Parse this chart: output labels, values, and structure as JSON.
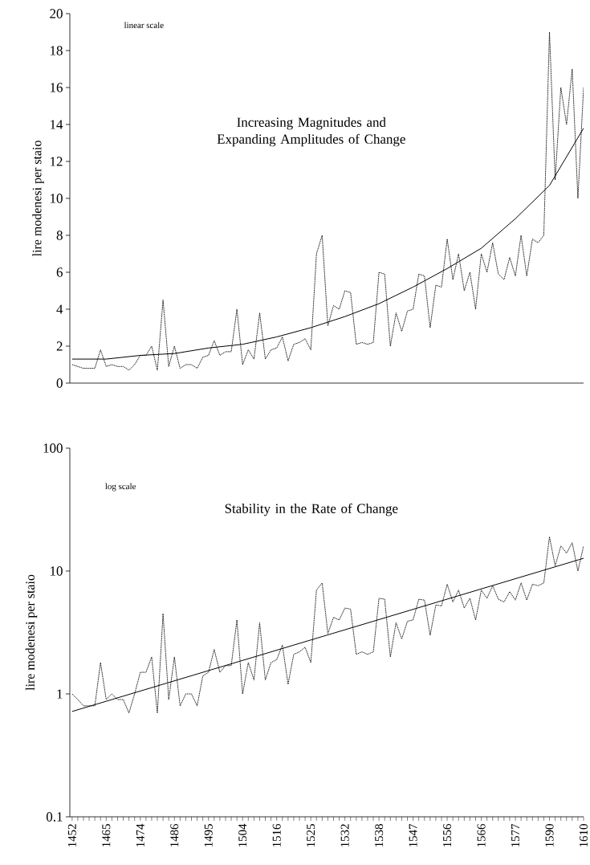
{
  "chart_data": [
    {
      "type": "line",
      "title": "Increasing Magnitudes and Expanding Amplitudes of Change",
      "ylabel": "lire modenesi per staio",
      "annotations": [
        "linear scale"
      ],
      "categories": [
        "1452",
        null,
        null,
        null,
        null,
        null,
        "1465",
        null,
        null,
        null,
        null,
        null,
        "1474",
        null,
        null,
        null,
        null,
        null,
        "1486",
        null,
        null,
        null,
        null,
        null,
        "1495",
        null,
        null,
        null,
        null,
        null,
        "1504",
        null,
        null,
        null,
        null,
        null,
        "1516",
        null,
        null,
        null,
        null,
        null,
        "1525",
        null,
        null,
        null,
        null,
        null,
        "1532",
        null,
        null,
        null,
        null,
        null,
        "1538",
        null,
        null,
        null,
        null,
        null,
        "1547",
        null,
        null,
        null,
        null,
        null,
        "1556",
        null,
        null,
        null,
        null,
        null,
        "1566",
        null,
        null,
        null,
        null,
        null,
        "1577",
        null,
        null,
        null,
        null,
        null,
        "1590",
        null,
        null,
        null,
        null,
        null,
        "1610"
      ],
      "series": [
        {
          "color": "#000000",
          "line_style": "dashed",
          "values": [
            1.0,
            0.9,
            0.8,
            0.8,
            0.8,
            1.8,
            0.9,
            1.0,
            0.9,
            0.9,
            0.7,
            1.0,
            1.5,
            1.5,
            2.0,
            0.7,
            4.5,
            0.9,
            2.0,
            0.8,
            1.0,
            1.0,
            0.8,
            1.4,
            1.5,
            2.3,
            1.5,
            1.7,
            1.7,
            4.0,
            1.0,
            1.8,
            1.3,
            3.8,
            1.3,
            1.8,
            1.9,
            2.5,
            1.2,
            2.1,
            2.2,
            2.4,
            1.8,
            7.0,
            8.0,
            3.1,
            4.2,
            4.0,
            5.0,
            4.9,
            2.1,
            2.2,
            2.1,
            2.2,
            6.0,
            5.9,
            2.0,
            3.8,
            2.8,
            3.9,
            4.0,
            5.9,
            5.8,
            3.0,
            5.3,
            5.2,
            7.8,
            5.6,
            7.0,
            5.0,
            6.0,
            4.0,
            7.0,
            6.0,
            7.6,
            5.9,
            5.6,
            6.8,
            5.8,
            8.0,
            5.8,
            7.8,
            7.6,
            8.0,
            19.0,
            11.0,
            16.0,
            14.0,
            17.0,
            10.0,
            16.0
          ]
        },
        {
          "color": "#000000",
          "line_style": "solid",
          "values": [
            1.3,
            null,
            null,
            null,
            null,
            null,
            1.3,
            null,
            null,
            null,
            null,
            null,
            1.5,
            null,
            null,
            null,
            null,
            null,
            1.6,
            null,
            null,
            null,
            null,
            null,
            1.9,
            null,
            null,
            null,
            null,
            null,
            2.1,
            null,
            null,
            null,
            null,
            null,
            2.5,
            null,
            null,
            null,
            null,
            null,
            3.0,
            null,
            null,
            null,
            null,
            null,
            3.6,
            null,
            null,
            null,
            null,
            null,
            4.3,
            null,
            null,
            null,
            null,
            null,
            5.2,
            null,
            null,
            null,
            null,
            null,
            6.2,
            null,
            null,
            null,
            null,
            null,
            7.3,
            null,
            null,
            null,
            null,
            null,
            8.9,
            null,
            null,
            null,
            null,
            null,
            10.7,
            null,
            null,
            null,
            null,
            null,
            13.8
          ]
        }
      ],
      "ylim": [
        0,
        20
      ],
      "yticks": [
        0,
        2,
        4,
        6,
        8,
        10,
        12,
        14,
        16,
        18,
        20
      ],
      "tick_labels": "y",
      "grid": false
    },
    {
      "type": "line",
      "title": "Stability in the Rate of Change",
      "ylabel": "lire modenesi per staio",
      "annotations": [
        "log scale"
      ],
      "categories": [
        "1452",
        null,
        null,
        null,
        null,
        null,
        "1465",
        null,
        null,
        null,
        null,
        null,
        "1474",
        null,
        null,
        null,
        null,
        null,
        "1486",
        null,
        null,
        null,
        null,
        null,
        "1495",
        null,
        null,
        null,
        null,
        null,
        "1504",
        null,
        null,
        null,
        null,
        null,
        "1516",
        null,
        null,
        null,
        null,
        null,
        "1525",
        null,
        null,
        null,
        null,
        null,
        "1532",
        null,
        null,
        null,
        null,
        null,
        "1538",
        null,
        null,
        null,
        null,
        null,
        "1547",
        null,
        null,
        null,
        null,
        null,
        "1556",
        null,
        null,
        null,
        null,
        null,
        "1566",
        null,
        null,
        null,
        null,
        null,
        "1577",
        null,
        null,
        null,
        null,
        null,
        "1590",
        null,
        null,
        null,
        null,
        null,
        "1610"
      ],
      "series": [
        {
          "color": "#000000",
          "line_style": "dashed",
          "values": [
            1.0,
            0.9,
            0.8,
            0.8,
            0.8,
            1.8,
            0.9,
            1.0,
            0.9,
            0.9,
            0.7,
            1.0,
            1.5,
            1.5,
            2.0,
            0.7,
            4.5,
            0.9,
            2.0,
            0.8,
            1.0,
            1.0,
            0.8,
            1.4,
            1.5,
            2.3,
            1.5,
            1.7,
            1.7,
            4.0,
            1.0,
            1.8,
            1.3,
            3.8,
            1.3,
            1.8,
            1.9,
            2.5,
            1.2,
            2.1,
            2.2,
            2.4,
            1.8,
            7.0,
            8.0,
            3.1,
            4.2,
            4.0,
            5.0,
            4.9,
            2.1,
            2.2,
            2.1,
            2.2,
            6.0,
            5.9,
            2.0,
            3.8,
            2.8,
            3.9,
            4.0,
            5.9,
            5.8,
            3.0,
            5.3,
            5.2,
            7.8,
            5.6,
            7.0,
            5.0,
            6.0,
            4.0,
            7.0,
            6.0,
            7.6,
            5.9,
            5.6,
            6.8,
            5.8,
            8.0,
            5.8,
            7.8,
            7.6,
            8.0,
            19.0,
            11.0,
            16.0,
            14.0,
            17.0,
            10.0,
            16.0
          ]
        },
        {
          "color": "#000000",
          "line_style": "solid",
          "values": [
            0.72,
            null,
            null,
            null,
            null,
            null,
            null,
            null,
            null,
            null,
            null,
            null,
            null,
            null,
            null,
            null,
            null,
            null,
            null,
            null,
            null,
            null,
            null,
            null,
            null,
            null,
            null,
            null,
            null,
            null,
            null,
            null,
            null,
            null,
            null,
            null,
            null,
            null,
            null,
            null,
            null,
            null,
            null,
            null,
            null,
            null,
            null,
            null,
            null,
            null,
            null,
            null,
            null,
            null,
            null,
            null,
            null,
            null,
            null,
            null,
            null,
            null,
            null,
            null,
            null,
            null,
            null,
            null,
            null,
            null,
            null,
            null,
            null,
            null,
            null,
            null,
            null,
            null,
            null,
            null,
            null,
            null,
            null,
            null,
            null,
            null,
            null,
            null,
            null,
            null,
            12.7
          ]
        }
      ],
      "log": "y",
      "ylim": [
        0.1,
        100
      ],
      "yticks": [
        0.1,
        1,
        10,
        100
      ],
      "grid": false
    }
  ]
}
